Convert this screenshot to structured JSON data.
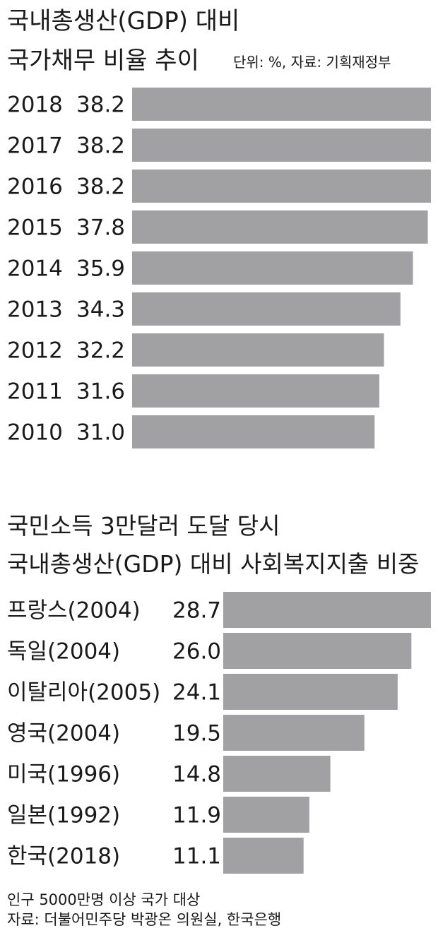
{
  "chart_data": [
    {
      "type": "bar",
      "orientation": "horizontal",
      "title": "국내총생산(GDP) 대비",
      "subtitle": "국가채무 비율 추이",
      "unit_note": "단위: %, 자료: 기획재정부",
      "categories": [
        "2018",
        "2017",
        "2016",
        "2015",
        "2014",
        "2013",
        "2012",
        "2011",
        "2010"
      ],
      "values": [
        38.2,
        38.2,
        38.2,
        37.8,
        35.9,
        34.3,
        32.2,
        31.6,
        31.0
      ],
      "value_labels": [
        "38.2",
        "38.2",
        "38.2",
        "37.8",
        "35.9",
        "34.3",
        "32.2",
        "31.6",
        "31.0"
      ],
      "xlim": [
        0,
        38.2
      ],
      "bar_color": "#a1a1a3",
      "grid": false,
      "legend": "none"
    },
    {
      "type": "bar",
      "orientation": "horizontal",
      "title": "국민소득 3만달러 도달 당시",
      "subtitle": "국내총생산(GDP) 대비 사회복지지출 비중",
      "categories": [
        "프랑스(2004)",
        "독일(2004)",
        "이탈리아(2005)",
        "영국(2004)",
        "미국(1996)",
        "일본(1992)",
        "한국(2018)"
      ],
      "values": [
        28.7,
        26.0,
        24.1,
        19.5,
        14.8,
        11.9,
        11.1
      ],
      "value_labels": [
        "28.7",
        "26.0",
        "24.1",
        "19.5",
        "14.8",
        "11.9",
        "11.1"
      ],
      "xlim": [
        0,
        28.7
      ],
      "bar_color": "#a1a1a3",
      "grid": false,
      "legend": "none"
    }
  ],
  "footnotes": {
    "line1": "인구 5000만명 이상 국가 대상",
    "line2": "자료: 더불어민주당 박광온 의원실, 한국은행"
  }
}
